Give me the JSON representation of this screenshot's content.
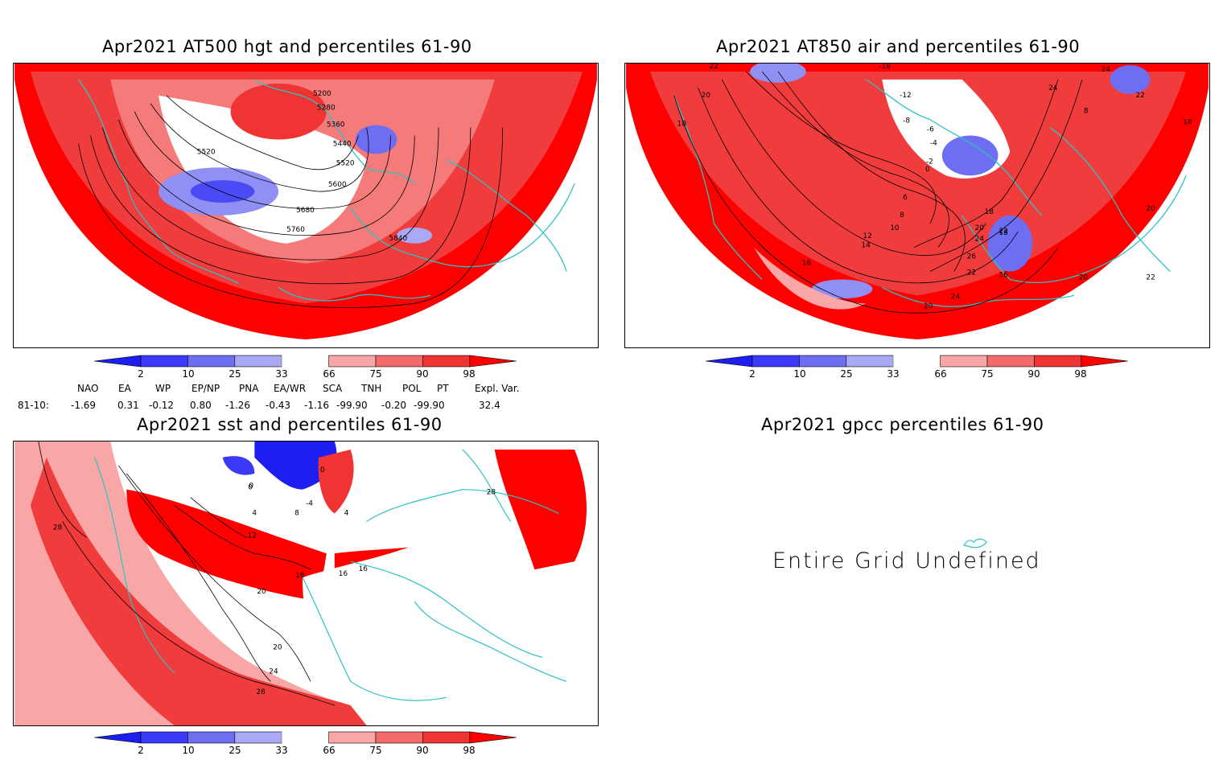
{
  "panels": {
    "hgt": {
      "title": "Apr2021 AT500 hgt and percentiles 61-90",
      "contours": [
        "5200",
        "5280",
        "5360",
        "5440",
        "5520",
        "5520",
        "5600",
        "5680",
        "5760",
        "5840"
      ]
    },
    "air": {
      "title": "Apr2021 AT850 air and percentiles 61-90",
      "contours": [
        "22",
        "20",
        "18",
        "-16",
        "-12",
        "-8",
        "-6",
        "-4",
        "-2",
        "0",
        "6",
        "8",
        "10",
        "12",
        "14",
        "16",
        "18",
        "20",
        "22",
        "24",
        "26",
        "22",
        "20",
        "24",
        "16",
        "18",
        "20",
        "22",
        "24",
        "8",
        "24",
        "22",
        "18",
        "20"
      ]
    },
    "sst": {
      "title": "Apr2021 sst and percentiles 61-90",
      "contours": [
        "0",
        "0",
        "4",
        "-4",
        "8",
        "12",
        "16",
        "16",
        "16",
        "20",
        "20",
        "24",
        "28",
        "28",
        "28",
        "0",
        "4"
      ]
    },
    "gpcc": {
      "title": "Apr2021 gpcc percentiles 61-90",
      "message": "Entire Grid Undefined"
    }
  },
  "colorbar": {
    "labels": [
      "2",
      "10",
      "25",
      "33",
      "66",
      "75",
      "90",
      "98"
    ],
    "colors": [
      "#1e1ef0",
      "#3a3af8",
      "#6e6ef2",
      "#a9a9f6",
      "#ffffff",
      "#f9a6a6",
      "#f36a6a",
      "#f03434",
      "#ff0000"
    ]
  },
  "indices": {
    "headers": [
      "NAO",
      "EA",
      "WP",
      "EP/NP",
      "PNA",
      "EA/WR",
      "SCA",
      "TNH",
      "POL",
      "PT",
      "Expl. Var."
    ],
    "row_label": "81-10:",
    "values": [
      "-1.69",
      "0.31",
      "-0.12",
      "0.80",
      "-1.26",
      "-0.43",
      "-1.16",
      "-99.90",
      "-0.20",
      "-99.90",
      "32.4"
    ]
  },
  "colors": {
    "coast": "#2cc3c3",
    "contour": "#000000",
    "red": "#ff0000",
    "blue": "#3b3bf2"
  }
}
